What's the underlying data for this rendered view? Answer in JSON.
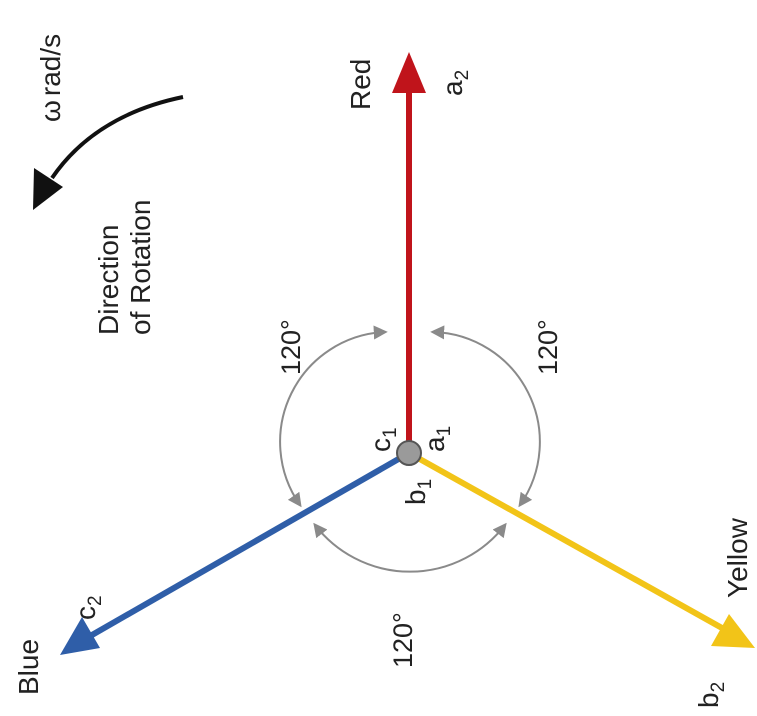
{
  "rotation": {
    "speed_symbol": "ω",
    "speed_unit": "rad/s",
    "direction_line1": "Direction",
    "direction_line2": "of Rotation"
  },
  "phases": {
    "red": {
      "name": "Red",
      "color": "#c0141b",
      "end_label": "a",
      "end_sub": "2",
      "start_label": "a",
      "start_sub": "1"
    },
    "yellow": {
      "name": "Yellow",
      "color": "#f2c418",
      "end_label": "b",
      "end_sub": "2",
      "start_label": "b",
      "start_sub": "1"
    },
    "blue": {
      "name": "Blue",
      "color": "#2f5ea8",
      "end_label": "c",
      "end_sub": "2",
      "start_label": "c",
      "start_sub": "1"
    }
  },
  "angles": {
    "red_yellow": "120°",
    "red_blue": "120°",
    "blue_yellow": "120°"
  },
  "colors": {
    "arc": "#8a8a8a",
    "rotation_arrow": "#111111",
    "center": "#9a9a9a"
  }
}
